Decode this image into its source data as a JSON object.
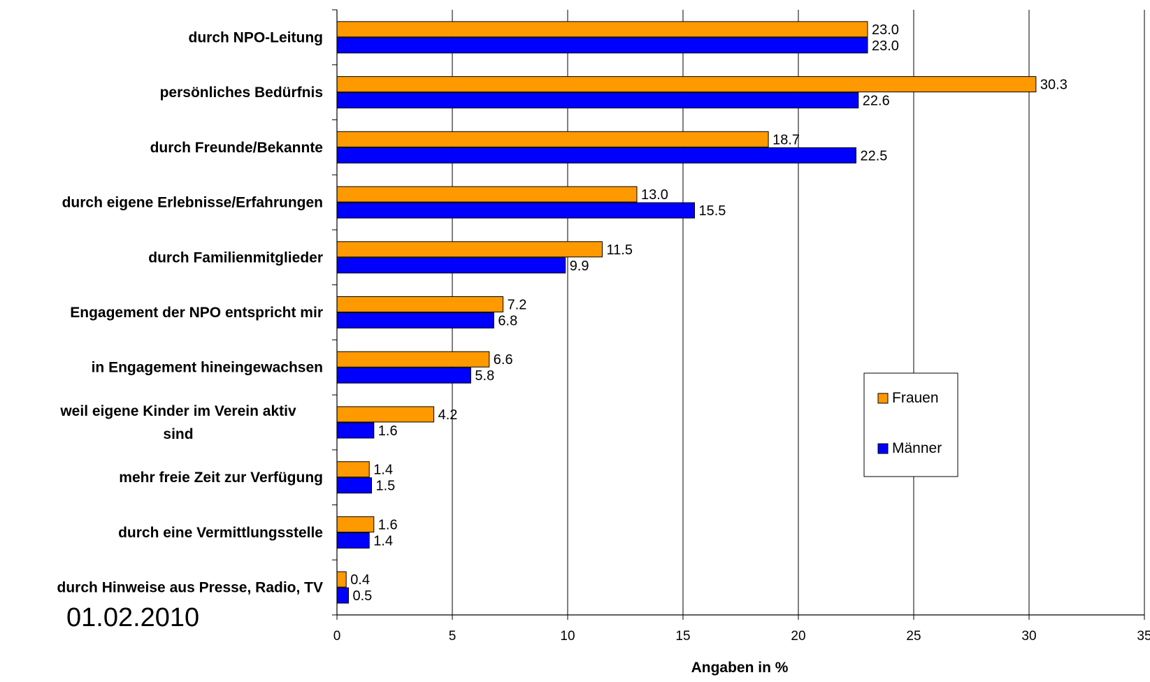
{
  "date_text": "01.02.2010",
  "chart_data": {
    "type": "bar",
    "orientation": "horizontal",
    "title": "",
    "xlabel": "Angaben in %",
    "ylabel": "",
    "xlim": [
      0,
      35
    ],
    "xticks": [
      0,
      5,
      10,
      15,
      20,
      25,
      30,
      35
    ],
    "grid": "vertical",
    "legend_position": "right",
    "categories": [
      "durch NPO-Leitung",
      "persönliches Bedürfnis",
      "durch Freunde/Bekannte",
      "durch eigene Erlebnisse/Erfahrungen",
      "durch Familienmitglieder",
      "Engagement der NPO entspricht mir",
      "in Engagement hineingewachsen",
      [
        "weil eigene Kinder im Verein aktiv",
        "sind"
      ],
      "mehr freie Zeit zur Verfügung",
      "durch eine Vermittlungsstelle",
      "durch Hinweise aus Presse, Radio, TV"
    ],
    "series": [
      {
        "name": "Frauen",
        "color": "#ff9900",
        "values": [
          23.0,
          30.3,
          18.7,
          13.0,
          11.5,
          7.2,
          6.6,
          4.2,
          1.4,
          1.6,
          0.4
        ]
      },
      {
        "name": "Männer",
        "color": "#0000ff",
        "values": [
          23.0,
          22.6,
          22.5,
          15.5,
          9.9,
          6.8,
          5.8,
          1.6,
          1.5,
          1.4,
          0.5
        ]
      }
    ]
  }
}
